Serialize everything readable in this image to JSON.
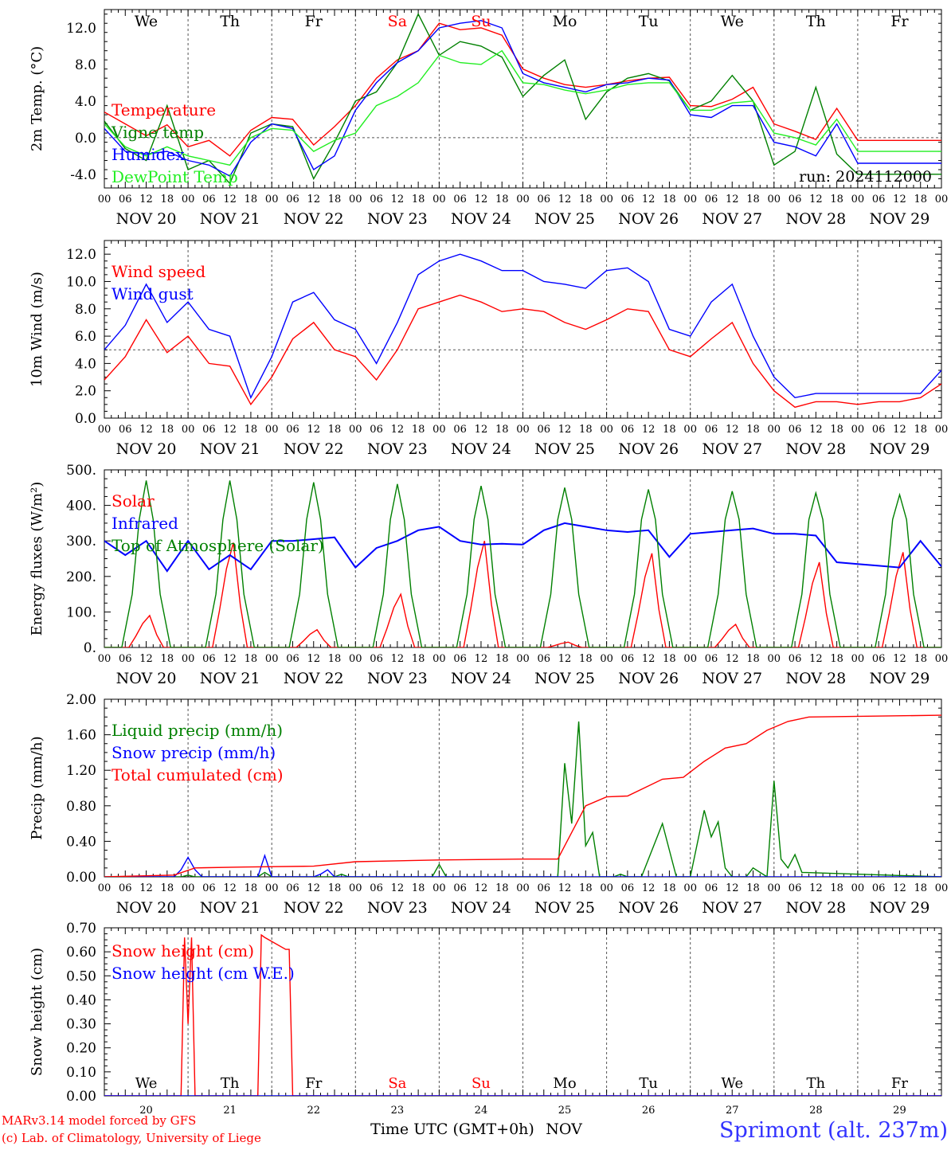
{
  "footer": {
    "model_line": "MARv3.14 model forced by GFS",
    "lab_line": "(c) Lab. of Climatology, University of Liege",
    "xaxis_title": "Time UTC (GMT+0h)",
    "month": "NOV",
    "station": "Sprimont (alt. 237m)"
  },
  "colors": {
    "red": "#ff0000",
    "green": "#008000",
    "blue": "#0000ff",
    "light_green": "#22ee22",
    "navy": "#000088"
  },
  "days": [
    {
      "name": "We",
      "color": "#000000",
      "date": "NOV 20",
      "num": "20"
    },
    {
      "name": "Th",
      "color": "#000000",
      "date": "NOV 21",
      "num": "21"
    },
    {
      "name": "Fr",
      "color": "#000000",
      "date": "NOV 22",
      "num": "22"
    },
    {
      "name": "Sa",
      "color": "#ff0000",
      "date": "NOV 23",
      "num": "23"
    },
    {
      "name": "Su",
      "color": "#ff0000",
      "date": "NOV 24",
      "num": "24"
    },
    {
      "name": "Mo",
      "color": "#000000",
      "date": "NOV 25",
      "num": "25"
    },
    {
      "name": "Tu",
      "color": "#000000",
      "date": "NOV 26",
      "num": "26"
    },
    {
      "name": "We",
      "color": "#000000",
      "date": "NOV 27",
      "num": "27"
    },
    {
      "name": "Th",
      "color": "#000000",
      "date": "NOV 28",
      "num": "28"
    },
    {
      "name": "Fr",
      "color": "#000000",
      "date": "NOV 29",
      "num": "29"
    }
  ],
  "hour_labels": [
    "00",
    "06",
    "12",
    "18"
  ],
  "chart_data": [
    {
      "type": "line",
      "ylabel": "2m Temp. (°C)",
      "ylim": [
        -5.5,
        14
      ],
      "yticks": [
        "-4.0",
        "0.0",
        "4.0",
        "8.0",
        "12.0"
      ],
      "ytick_values": [
        -4,
        0,
        4,
        8,
        12
      ],
      "ref_line": 0,
      "x_unit": "hours since 2024-11-20 00 UTC",
      "annotation": "run: 2024112000",
      "series": [
        {
          "name": "Temperature",
          "color": "#ff0000",
          "x": [
            0,
            6,
            12,
            18,
            24,
            30,
            36,
            42,
            48,
            54,
            60,
            66,
            72,
            78,
            84,
            90,
            96,
            102,
            108,
            114,
            120,
            126,
            132,
            138,
            144,
            150,
            156,
            162,
            168,
            174,
            180,
            186,
            192,
            198,
            204,
            210,
            216,
            222,
            228,
            234,
            240
          ],
          "y": [
            2.8,
            1.5,
            0.2,
            1.4,
            -1.0,
            -0.3,
            -2.0,
            0.8,
            2.2,
            2.0,
            -0.8,
            1.2,
            3.5,
            6.5,
            8.5,
            9.5,
            12.5,
            11.8,
            12.0,
            11.2,
            7.5,
            6.5,
            5.8,
            5.5,
            5.8,
            6.2,
            6.5,
            6.6,
            3.5,
            3.4,
            4.2,
            5.5,
            1.5,
            0.7,
            -0.2,
            3.2,
            -0.3,
            -0.3,
            -0.3,
            -0.3,
            -0.3
          ]
        },
        {
          "name": "Vigne temp",
          "color": "#008000",
          "x": [
            0,
            6,
            12,
            18,
            24,
            30,
            36,
            42,
            48,
            54,
            60,
            66,
            72,
            78,
            84,
            90,
            96,
            102,
            108,
            114,
            120,
            126,
            132,
            138,
            144,
            150,
            156,
            162,
            168,
            174,
            180,
            186,
            192,
            198,
            204,
            210,
            216,
            222,
            228,
            234,
            240
          ],
          "y": [
            1.8,
            -1.2,
            -2.5,
            3.5,
            -3.5,
            -2.5,
            -5.0,
            0.5,
            1.5,
            1.2,
            -4.5,
            -0.5,
            4.0,
            5.0,
            8.2,
            13.5,
            9.0,
            10.5,
            10.0,
            8.8,
            4.5,
            6.8,
            8.5,
            2.0,
            5.0,
            6.5,
            7.0,
            6.2,
            3.0,
            4.0,
            6.8,
            4.0,
            -3.0,
            -1.5,
            5.5,
            -1.8,
            -4.0,
            -4.0,
            -4.0,
            -4.0,
            -4.0
          ]
        },
        {
          "name": "Humidex",
          "color": "#0000ff",
          "x": [
            0,
            6,
            12,
            18,
            24,
            30,
            36,
            42,
            48,
            54,
            60,
            66,
            72,
            78,
            84,
            90,
            96,
            102,
            108,
            114,
            120,
            126,
            132,
            138,
            144,
            150,
            156,
            162,
            168,
            174,
            180,
            186,
            192,
            198,
            204,
            210,
            216,
            222,
            228,
            234,
            240
          ],
          "y": [
            1.0,
            -1.5,
            -1.8,
            -1.5,
            -2.5,
            -3.0,
            -4.2,
            -0.5,
            1.5,
            1.0,
            -3.5,
            -2.0,
            3.0,
            6.0,
            8.2,
            9.5,
            12.0,
            12.5,
            12.8,
            12.0,
            7.0,
            6.0,
            5.5,
            5.0,
            5.8,
            6.0,
            6.5,
            6.3,
            2.5,
            2.2,
            3.5,
            3.5,
            -0.5,
            -1.0,
            -2.0,
            1.5,
            -2.8,
            -2.8,
            -2.8,
            -2.8,
            -2.8
          ]
        },
        {
          "name": "DewPoint Temp",
          "color": "#22ee22",
          "x": [
            0,
            6,
            12,
            18,
            24,
            30,
            36,
            42,
            48,
            54,
            60,
            66,
            72,
            78,
            84,
            90,
            96,
            102,
            108,
            114,
            120,
            126,
            132,
            138,
            144,
            150,
            156,
            162,
            168,
            174,
            180,
            186,
            192,
            198,
            204,
            210,
            216,
            222,
            228,
            234,
            240
          ],
          "y": [
            1.5,
            -1.0,
            -2.0,
            -1.0,
            -2.0,
            -2.5,
            -3.0,
            0.0,
            1.0,
            0.8,
            -1.5,
            -0.3,
            0.5,
            3.5,
            4.5,
            6.0,
            9.0,
            8.2,
            8.0,
            9.5,
            6.0,
            5.8,
            5.2,
            4.8,
            5.2,
            5.8,
            6.0,
            6.0,
            3.0,
            3.0,
            3.8,
            4.0,
            0.5,
            0.0,
            -0.8,
            2.0,
            -1.5,
            -1.5,
            -1.5,
            -1.5,
            -1.5
          ]
        }
      ]
    },
    {
      "type": "line",
      "ylabel": "10m Wind (m/s)",
      "ylim": [
        0,
        13
      ],
      "yticks": [
        "0.0",
        "2.0",
        "4.0",
        "6.0",
        "8.0",
        "10.0",
        "12.0"
      ],
      "ytick_values": [
        0,
        2,
        4,
        6,
        8,
        10,
        12
      ],
      "ref_line": 5,
      "x_unit": "hours since 2024-11-20 00 UTC",
      "series": [
        {
          "name": "Wind speed",
          "color": "#ff0000",
          "x": [
            0,
            6,
            12,
            18,
            24,
            30,
            36,
            42,
            48,
            54,
            60,
            66,
            72,
            78,
            84,
            90,
            96,
            102,
            108,
            114,
            120,
            126,
            132,
            138,
            144,
            150,
            156,
            162,
            168,
            174,
            180,
            186,
            192,
            198,
            204,
            210,
            216,
            222,
            228,
            234,
            240
          ],
          "y": [
            2.8,
            4.5,
            7.2,
            4.8,
            6.0,
            4.0,
            3.8,
            1.0,
            3.0,
            5.8,
            7.0,
            5.0,
            4.5,
            2.8,
            5.0,
            8.0,
            8.5,
            9.0,
            8.5,
            7.8,
            8.0,
            7.8,
            7.0,
            6.5,
            7.2,
            8.0,
            7.8,
            5.0,
            4.5,
            5.8,
            7.0,
            4.0,
            2.0,
            0.8,
            1.2,
            1.2,
            1.0,
            1.2,
            1.2,
            1.5,
            2.5
          ]
        },
        {
          "name": "Wind gust",
          "color": "#0000ff",
          "x": [
            0,
            6,
            12,
            18,
            24,
            30,
            36,
            42,
            48,
            54,
            60,
            66,
            72,
            78,
            84,
            90,
            96,
            102,
            108,
            114,
            120,
            126,
            132,
            138,
            144,
            150,
            156,
            162,
            168,
            174,
            180,
            186,
            192,
            198,
            204,
            210,
            216,
            222,
            228,
            234,
            240
          ],
          "y": [
            5.0,
            6.8,
            9.8,
            7.0,
            8.5,
            6.5,
            6.0,
            1.5,
            4.5,
            8.5,
            9.2,
            7.2,
            6.5,
            4.0,
            7.0,
            10.5,
            11.5,
            12.0,
            11.5,
            10.8,
            10.8,
            10.0,
            9.8,
            9.5,
            10.8,
            11.0,
            10.0,
            6.5,
            6.0,
            8.5,
            9.8,
            6.0,
            3.0,
            1.5,
            1.8,
            1.8,
            1.8,
            1.8,
            1.8,
            1.8,
            3.5
          ]
        }
      ]
    },
    {
      "type": "line",
      "ylabel": "Energy fluxes (W/m²)",
      "ylim": [
        0,
        500
      ],
      "yticks": [
        "0.",
        "100.",
        "200.",
        "300.",
        "400.",
        "500."
      ],
      "ytick_values": [
        0,
        100,
        200,
        300,
        400,
        500
      ],
      "x_unit": "hours since 2024-11-20 00 UTC",
      "series": [
        {
          "name": "Solar",
          "color": "#ff0000",
          "peaks": [
            90,
            295,
            50,
            150,
            300,
            15,
            265,
            65,
            240,
            268
          ]
        },
        {
          "name": "Infrared",
          "color": "#0000ff",
          "x": [
            0,
            6,
            12,
            18,
            24,
            30,
            36,
            42,
            48,
            54,
            60,
            66,
            72,
            78,
            84,
            90,
            96,
            102,
            108,
            114,
            120,
            126,
            132,
            138,
            144,
            150,
            156,
            162,
            168,
            174,
            180,
            186,
            192,
            198,
            204,
            210,
            216,
            222,
            228,
            234,
            240
          ],
          "y": [
            300,
            260,
            300,
            215,
            300,
            220,
            260,
            220,
            300,
            300,
            305,
            310,
            225,
            280,
            300,
            330,
            340,
            300,
            290,
            292,
            290,
            330,
            350,
            340,
            330,
            325,
            330,
            255,
            320,
            325,
            330,
            335,
            320,
            320,
            315,
            240,
            235,
            230,
            225,
            300,
            228
          ]
        },
        {
          "name": "Top of Atmosphere (Solar)",
          "color": "#008000",
          "peaks": [
            470,
            470,
            465,
            460,
            455,
            450,
            445,
            440,
            435,
            430
          ]
        }
      ]
    },
    {
      "type": "line",
      "ylabel": "Precip (mm/h)",
      "ylim": [
        0,
        2.0
      ],
      "yticks": [
        "0.00",
        "0.40",
        "0.80",
        "1.20",
        "1.60",
        "2.00"
      ],
      "ytick_values": [
        0,
        0.4,
        0.8,
        1.2,
        1.6,
        2.0
      ],
      "x_unit": "hours since 2024-11-20 00 UTC",
      "series": [
        {
          "name": "Liquid precip (mm/h)",
          "color": "#008000",
          "x": [
            0,
            12,
            22,
            24,
            26,
            44,
            46,
            48,
            66,
            68,
            70,
            94,
            96,
            98,
            130,
            132,
            134,
            136,
            138,
            140,
            142,
            146,
            148,
            150,
            152,
            154,
            160,
            162,
            164,
            166,
            168,
            172,
            174,
            176,
            178,
            180,
            184,
            186,
            190,
            192,
            194,
            196,
            198,
            200,
            240
          ],
          "y": [
            0,
            0,
            0,
            0.02,
            0,
            0,
            0.05,
            0,
            0,
            0.03,
            0,
            0,
            0.14,
            0,
            0,
            1.28,
            0.6,
            1.75,
            0.35,
            0.5,
            0,
            0,
            0.03,
            0,
            0,
            0,
            0.6,
            0.3,
            0,
            0,
            0,
            0.75,
            0.45,
            0.62,
            0.1,
            0,
            0,
            0.1,
            0,
            1.08,
            0.2,
            0.1,
            0.25,
            0.05,
            0
          ]
        },
        {
          "name": "Snow precip (mm/h)",
          "color": "#0000ff",
          "x": [
            0,
            20,
            22,
            24,
            26,
            28,
            44,
            46,
            48,
            60,
            62,
            64,
            66,
            240
          ],
          "y": [
            0,
            0,
            0.08,
            0.22,
            0.08,
            0,
            0,
            0.24,
            0,
            0,
            0.03,
            0.08,
            0,
            0
          ]
        },
        {
          "name": "Total cumulated (cm)",
          "color": "#ff0000",
          "x": [
            0,
            20,
            26,
            40,
            60,
            72,
            96,
            120,
            130,
            138,
            144,
            150,
            160,
            166,
            172,
            178,
            184,
            190,
            196,
            202,
            240
          ],
          "y": [
            0,
            0.02,
            0.1,
            0.11,
            0.12,
            0.17,
            0.19,
            0.2,
            0.2,
            0.8,
            0.9,
            0.91,
            1.1,
            1.12,
            1.3,
            1.45,
            1.5,
            1.65,
            1.75,
            1.8,
            1.82
          ]
        }
      ]
    },
    {
      "type": "line",
      "ylabel": "Snow height (cm)",
      "ylim": [
        0,
        0.7
      ],
      "yticks": [
        "0.00",
        "0.10",
        "0.20",
        "0.30",
        "0.40",
        "0.50",
        "0.60",
        "0.70"
      ],
      "ytick_values": [
        0,
        0.1,
        0.2,
        0.3,
        0.4,
        0.5,
        0.6,
        0.7
      ],
      "x_unit": "hours since 2024-11-20 00 UTC",
      "series": [
        {
          "name": "Snow height (cm)",
          "color": "#ff0000",
          "x": [
            0,
            22,
            23,
            24,
            25,
            26,
            44,
            45,
            46,
            52,
            53,
            54,
            240
          ],
          "y": [
            0,
            0,
            0.66,
            0.3,
            0.66,
            0,
            0,
            0.67,
            0.66,
            0.61,
            0.61,
            0,
            0
          ]
        },
        {
          "name": "Snow height (cm W.E.)",
          "color": "#0000ff",
          "x": [
            0,
            240
          ],
          "y": [
            0,
            0
          ]
        }
      ]
    }
  ]
}
